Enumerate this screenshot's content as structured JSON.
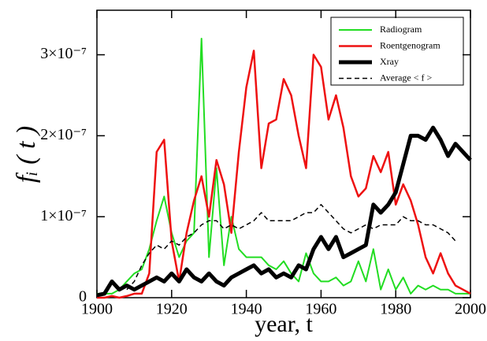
{
  "chart_data": {
    "type": "line",
    "x_label": "year, t",
    "y_label": "fᵢ ( t )",
    "x": [
      1900,
      1902,
      1904,
      1906,
      1908,
      1910,
      1912,
      1914,
      1916,
      1918,
      1920,
      1922,
      1924,
      1926,
      1928,
      1930,
      1932,
      1934,
      1936,
      1938,
      1940,
      1942,
      1944,
      1946,
      1948,
      1950,
      1952,
      1954,
      1956,
      1958,
      1960,
      1962,
      1964,
      1966,
      1968,
      1970,
      1972,
      1974,
      1976,
      1978,
      1980,
      1982,
      1984,
      1986,
      1988,
      1990,
      1992,
      1994,
      1996,
      1998,
      2000
    ],
    "series": [
      {
        "name": "Radiogram",
        "color": "#22dd22",
        "width": 2,
        "dashed": false,
        "values": [
          5e-09,
          5e-09,
          5e-09,
          1e-08,
          2e-08,
          3e-08,
          3.5e-08,
          6e-08,
          9.5e-08,
          1.25e-07,
          8e-08,
          5e-08,
          7e-08,
          8e-08,
          3.2e-07,
          5e-08,
          1.6e-07,
          4e-08,
          1e-07,
          6e-08,
          5e-08,
          5e-08,
          5e-08,
          4e-08,
          3.5e-08,
          4.5e-08,
          3e-08,
          2e-08,
          5.5e-08,
          3e-08,
          2e-08,
          2e-08,
          2.5e-08,
          1.5e-08,
          2e-08,
          4.5e-08,
          2e-08,
          6e-08,
          1e-08,
          3.5e-08,
          1e-08,
          2.5e-08,
          5e-09,
          1.5e-08,
          1e-08,
          1.5e-08,
          1e-08,
          1e-08,
          5e-09,
          5e-09,
          5e-09
        ]
      },
      {
        "name": "Roentgenogram",
        "color": "#ee1111",
        "width": 2.5,
        "dashed": false,
        "values": [
          0,
          0,
          2e-09,
          0,
          2e-09,
          5e-09,
          5e-09,
          3e-08,
          1.8e-07,
          1.95e-07,
          7e-08,
          2e-08,
          8e-08,
          1.2e-07,
          1.5e-07,
          1e-07,
          1.7e-07,
          1.4e-07,
          8e-08,
          1.8e-07,
          2.6e-07,
          3.05e-07,
          1.6e-07,
          2.15e-07,
          2.2e-07,
          2.7e-07,
          2.5e-07,
          2e-07,
          1.6e-07,
          3e-07,
          2.85e-07,
          2.2e-07,
          2.5e-07,
          2.1e-07,
          1.5e-07,
          1.25e-07,
          1.35e-07,
          1.75e-07,
          1.55e-07,
          1.8e-07,
          1.15e-07,
          1.4e-07,
          1.2e-07,
          9e-08,
          5e-08,
          3e-08,
          5.5e-08,
          3e-08,
          1.5e-08,
          1e-08,
          5e-09
        ]
      },
      {
        "name": "Xray",
        "color": "#000000",
        "width": 5,
        "dashed": false,
        "values": [
          3e-09,
          5e-09,
          2e-08,
          1e-08,
          1.5e-08,
          1e-08,
          1.5e-08,
          2e-08,
          2.5e-08,
          2e-08,
          3e-08,
          2e-08,
          3.5e-08,
          2.5e-08,
          2e-08,
          3e-08,
          2e-08,
          1.5e-08,
          2.5e-08,
          3e-08,
          3.5e-08,
          4e-08,
          3e-08,
          3.5e-08,
          2.5e-08,
          3e-08,
          2.5e-08,
          4e-08,
          3.5e-08,
          6e-08,
          7.5e-08,
          6e-08,
          7.5e-08,
          5e-08,
          5.5e-08,
          6e-08,
          6.5e-08,
          1.15e-07,
          1.05e-07,
          1.15e-07,
          1.3e-07,
          1.65e-07,
          2e-07,
          2e-07,
          1.95e-07,
          2.1e-07,
          1.95e-07,
          1.75e-07,
          1.9e-07,
          1.8e-07,
          1.7e-07
        ]
      },
      {
        "name": "Average < f >",
        "color": "#000000",
        "width": 1.5,
        "dashed": true,
        "values": [
          null,
          null,
          null,
          null,
          1e-08,
          2e-08,
          4e-08,
          5.5e-08,
          6.5e-08,
          6e-08,
          7e-08,
          6.5e-08,
          7.5e-08,
          8e-08,
          9e-08,
          9.5e-08,
          9.5e-08,
          8.5e-08,
          9e-08,
          8.5e-08,
          9e-08,
          9.5e-08,
          1.05e-07,
          9.5e-08,
          9.5e-08,
          9.5e-08,
          9.5e-08,
          1e-07,
          1.05e-07,
          1.05e-07,
          1.15e-07,
          1.05e-07,
          9.5e-08,
          8.5e-08,
          8e-08,
          8.5e-08,
          9e-08,
          8.5e-08,
          9e-08,
          9e-08,
          9e-08,
          1e-07,
          9.5e-08,
          9.5e-08,
          9e-08,
          9e-08,
          8.5e-08,
          8e-08,
          7e-08,
          null,
          null
        ]
      }
    ],
    "xlim": [
      1900,
      2000
    ],
    "xticks": [
      1900,
      1920,
      1940,
      1960,
      1980,
      2000
    ],
    "ylim": [
      0,
      3.55e-07
    ],
    "yticks": [
      0,
      {
        "value": 1e-07,
        "label": "1×10⁻⁷"
      },
      {
        "value": 2e-07,
        "label": "2×10⁻⁷"
      },
      {
        "value": 3e-07,
        "label": "3×10⁻⁷"
      }
    ],
    "legend": "upper right"
  }
}
